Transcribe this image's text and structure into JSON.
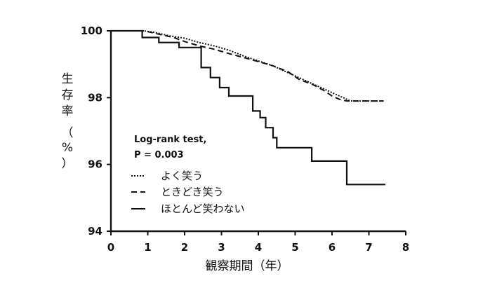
{
  "chart_data": {
    "type": "line",
    "xlabel": "観察期間（年）",
    "ylabel": "生存率（%）",
    "xlim": [
      0,
      8
    ],
    "ylim": [
      94,
      100
    ],
    "xticks": [
      "0",
      "1",
      "2",
      "3",
      "4",
      "5",
      "6",
      "7",
      "8"
    ],
    "yticks": [
      "100",
      "98",
      "96",
      "94"
    ],
    "annotation": [
      "Log-rank test,",
      "P = 0.003"
    ],
    "legend_position": "bottom-left",
    "grid": false,
    "series": [
      {
        "name": "よく笑う",
        "dash": "dotted",
        "color": "#111111",
        "points": [
          [
            0,
            100
          ],
          [
            0.9,
            100
          ],
          [
            1.2,
            99.95
          ],
          [
            1.6,
            99.85
          ],
          [
            2.0,
            99.78
          ],
          [
            2.4,
            99.65
          ],
          [
            2.8,
            99.55
          ],
          [
            3.2,
            99.42
          ],
          [
            3.6,
            99.25
          ],
          [
            4.0,
            99.1
          ],
          [
            4.4,
            98.95
          ],
          [
            4.8,
            98.75
          ],
          [
            5.2,
            98.55
          ],
          [
            5.6,
            98.35
          ],
          [
            6.0,
            98.15
          ],
          [
            6.3,
            98.0
          ],
          [
            6.5,
            97.9
          ],
          [
            7.0,
            97.9
          ],
          [
            7.4,
            97.9
          ]
        ]
      },
      {
        "name": "ときどき笑う",
        "dash": "dashed",
        "color": "#111111",
        "points": [
          [
            0,
            100
          ],
          [
            0.9,
            100
          ],
          [
            1.3,
            99.9
          ],
          [
            1.7,
            99.8
          ],
          [
            2.0,
            99.68
          ],
          [
            2.4,
            99.55
          ],
          [
            2.8,
            99.45
          ],
          [
            3.2,
            99.32
          ],
          [
            3.6,
            99.2
          ],
          [
            4.0,
            99.08
          ],
          [
            4.4,
            98.95
          ],
          [
            4.8,
            98.78
          ],
          [
            5.1,
            98.55
          ],
          [
            5.5,
            98.38
          ],
          [
            5.8,
            98.2
          ],
          [
            6.0,
            98.05
          ],
          [
            6.2,
            97.95
          ],
          [
            6.4,
            97.9
          ],
          [
            7.4,
            97.9
          ]
        ]
      },
      {
        "name": "ほとんど笑わない",
        "dash": "solid",
        "color": "#111111",
        "points": [
          [
            0,
            100
          ],
          [
            0.85,
            100
          ],
          [
            0.85,
            99.8
          ],
          [
            1.3,
            99.8
          ],
          [
            1.3,
            99.65
          ],
          [
            1.85,
            99.65
          ],
          [
            1.85,
            99.5
          ],
          [
            2.45,
            99.5
          ],
          [
            2.45,
            98.9
          ],
          [
            2.7,
            98.9
          ],
          [
            2.7,
            98.6
          ],
          [
            2.95,
            98.6
          ],
          [
            2.95,
            98.3
          ],
          [
            3.2,
            98.3
          ],
          [
            3.2,
            98.05
          ],
          [
            3.85,
            98.05
          ],
          [
            3.85,
            97.6
          ],
          [
            4.05,
            97.6
          ],
          [
            4.05,
            97.4
          ],
          [
            4.2,
            97.4
          ],
          [
            4.2,
            97.1
          ],
          [
            4.4,
            97.1
          ],
          [
            4.4,
            96.8
          ],
          [
            4.5,
            96.8
          ],
          [
            4.5,
            96.5
          ],
          [
            5.45,
            96.5
          ],
          [
            5.45,
            96.1
          ],
          [
            6.4,
            96.1
          ],
          [
            6.4,
            95.4
          ],
          [
            7.45,
            95.4
          ]
        ]
      }
    ]
  }
}
